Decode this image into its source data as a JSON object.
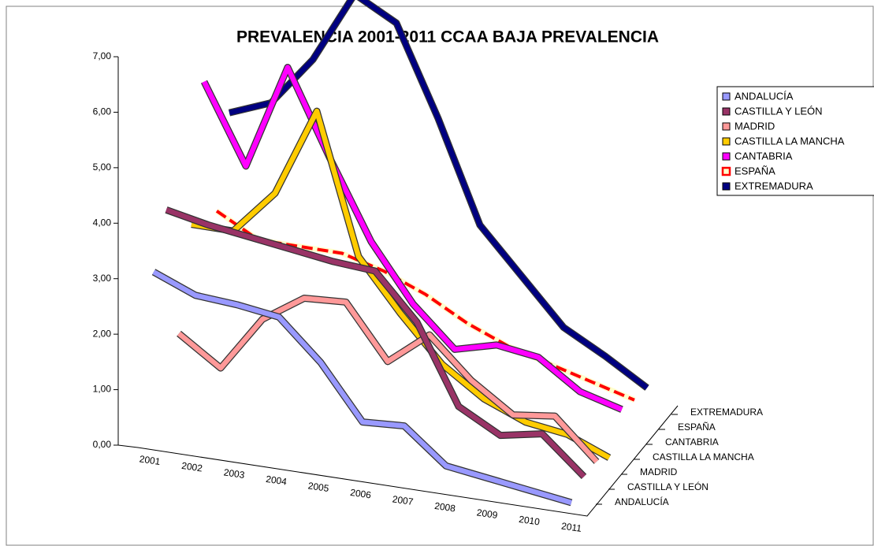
{
  "chart_data": {
    "type": "line3d",
    "title": "PREVALENCIA 2001-2011 CCAA BAJA PREVALENCIA",
    "categories": [
      "2001",
      "2002",
      "2003",
      "2004",
      "2005",
      "2006",
      "2007",
      "2008",
      "2009",
      "2010",
      "2011"
    ],
    "ylim": [
      0,
      7
    ],
    "yticks": [
      {
        "value": 0,
        "label": "0,00"
      },
      {
        "value": 1,
        "label": "1,00"
      },
      {
        "value": 2,
        "label": "2,00"
      },
      {
        "value": 3,
        "label": "3,00"
      },
      {
        "value": 4,
        "label": "4,00"
      },
      {
        "value": 5,
        "label": "5,00"
      },
      {
        "value": 6,
        "label": "6,00"
      },
      {
        "value": 7,
        "label": "7,00"
      }
    ],
    "legend": "top-right",
    "series": [
      {
        "name": "ANDALUCÍA",
        "color": "#9999ff",
        "values": [
          3.05,
          2.75,
          2.7,
          2.6,
          1.9,
          0.95,
          1.0,
          0.4,
          0.3,
          0.2,
          0.1
        ]
      },
      {
        "name": "CASTILLA Y LEÓN",
        "color": "#993366",
        "values": [
          3.9,
          3.75,
          3.65,
          3.55,
          3.45,
          3.4,
          2.6,
          1.2,
          0.8,
          0.95,
          0.3
        ]
      },
      {
        "name": "MADRID",
        "color": "#ff9999",
        "values": [
          1.4,
          0.9,
          1.9,
          2.4,
          2.45,
          1.5,
          2.1,
          1.4,
          0.9,
          1.0,
          0.3
        ]
      },
      {
        "name": "CASTILLA LA MANCHA",
        "color": "#ffcc00",
        "values": [
          3.1,
          3.1,
          3.9,
          5.5,
          3.0,
          2.1,
          1.3,
          0.8,
          0.5,
          0.4,
          0.1
        ]
      },
      {
        "name": "CANTABRIA",
        "color": "#ff00ff",
        "values": [
          5.4,
          4.0,
          5.9,
          4.4,
          3.0,
          2.0,
          1.3,
          1.5,
          1.4,
          0.9,
          0.7
        ]
      },
      {
        "name": "ESPAÑA",
        "color": "#ff0000",
        "style": "dashed",
        "values": [
          2.8,
          2.4,
          2.4,
          2.4,
          2.2,
          1.9,
          1.5,
          1.2,
          1.0,
          0.8,
          0.6
        ]
      },
      {
        "name": "EXTREMADURA",
        "color": "#000080",
        "values": [
          4.3,
          4.6,
          5.5,
          6.8,
          6.4,
          4.8,
          3.0,
          2.2,
          1.4,
          1.0,
          0.55
        ]
      }
    ]
  }
}
